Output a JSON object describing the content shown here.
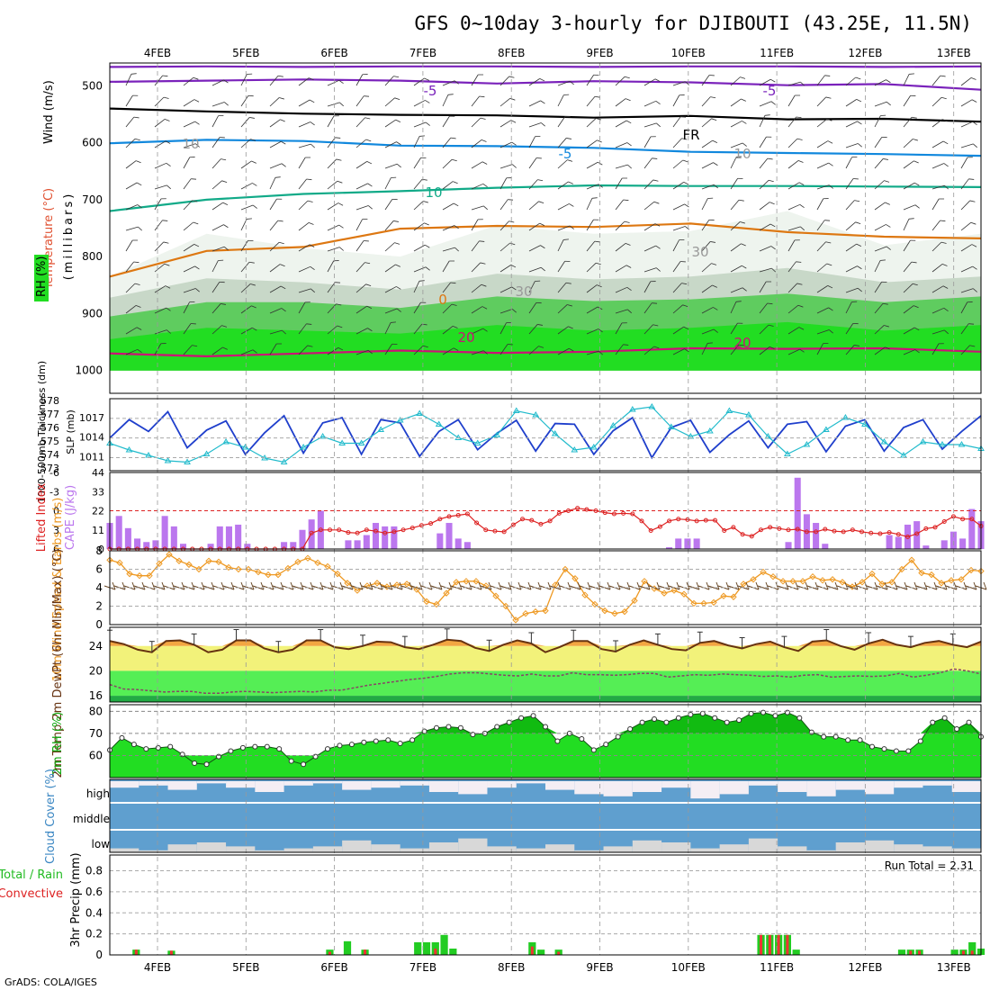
{
  "title": "GFS 0~10day 3-hourly for DJIBOUTI (43.25E, 11.5N)",
  "footer": "GrADS: COLA/IGES",
  "run_total": "Run Total = 2.31",
  "dates": [
    "4FEB",
    "5FEB",
    "6FEB",
    "7FEB",
    "8FEB",
    "9FEB",
    "10FEB",
    "11FEB",
    "12FEB",
    "13FEB"
  ],
  "colors": {
    "rh_green": "#22dd22",
    "cape": "#bb77ee",
    "li": "#dd2222",
    "slp": "#1f3fcc",
    "thick": "#22bbcc",
    "wind10": "#ee9922",
    "barb": "#664422",
    "temp_fill": "#f3a642",
    "temp_line": "#663311",
    "yellow": "#f2f27a",
    "green_band": "#55ee55",
    "cloud": "#5f9fcf",
    "precip_total": "#22cc22",
    "precip_conv": "#ee3333"
  },
  "chart_data": [
    {
      "type": "contour",
      "panel": "upper-air",
      "ylabel_wind": "Wind (m/s)",
      "ylabel_temp": "Temperature (°C)",
      "ylabel_units": "(millibars)",
      "legend_rh": "RH (%)",
      "y_ticks": [
        "500",
        "600",
        "700",
        "800",
        "900",
        "1000"
      ],
      "ylim": [
        460,
        1040
      ],
      "contour_labels": [
        {
          "text": "-5",
          "color": "#7a22bb"
        },
        {
          "text": "-5",
          "color": "#7a22bb"
        },
        {
          "text": "FR",
          "color": "#000000"
        },
        {
          "text": "-5",
          "color": "#1188dd"
        },
        {
          "text": "10",
          "color": "#11aa88"
        },
        {
          "text": "0",
          "color": "#dd7711"
        },
        {
          "text": "20",
          "color": "#cc1177"
        },
        {
          "text": "20",
          "color": "#cc1177"
        },
        {
          "text": "10",
          "color": "#999999"
        },
        {
          "text": "10",
          "color": "#999999"
        },
        {
          "text": "30",
          "color": "#999999"
        },
        {
          "text": "30",
          "color": "#999999"
        }
      ],
      "isotherms_hPa": [
        {
          "name": "-10",
          "color": "#7a22bb",
          "values": [
            467,
            466,
            467,
            466,
            466,
            467,
            466,
            466,
            467,
            466
          ]
        },
        {
          "name": "-5",
          "color": "#7a22bb",
          "values": [
            493,
            491,
            489,
            491,
            496,
            492,
            494,
            499,
            497,
            507
          ]
        },
        {
          "name": "FR",
          "color": "#000000",
          "values": [
            540,
            545,
            549,
            551,
            552,
            556,
            553,
            559,
            558,
            563
          ]
        },
        {
          "name": "-5(blue)",
          "color": "#1188dd",
          "values": [
            601,
            595,
            597,
            605,
            606,
            609,
            616,
            618,
            620,
            623
          ]
        },
        {
          "name": "10",
          "color": "#11aa88",
          "values": [
            720,
            700,
            690,
            685,
            679,
            675,
            676,
            676,
            677,
            678
          ]
        },
        {
          "name": "0",
          "color": "#dd7711",
          "values": [
            835,
            790,
            783,
            751,
            746,
            748,
            742,
            757,
            765,
            768
          ]
        },
        {
          "name": "20",
          "color": "#cc1177",
          "values": [
            970,
            975,
            970,
            965,
            969,
            967,
            961,
            962,
            961,
            967
          ]
        }
      ]
    },
    {
      "type": "line",
      "panel": "slp-thickness",
      "ylabel_left": "1000-500mb Thickness (dm)",
      "ylabel_right": "SLP (mb)",
      "left_ticks": [
        "578",
        "577",
        "576",
        "575",
        "574",
        "573"
      ],
      "right_ticks": [
        "1017",
        "1014",
        "1011"
      ],
      "series": [
        {
          "name": "SLP",
          "values": [
            1014.0,
            1016.8,
            1015.0,
            1018.0,
            1012.5,
            1015.2,
            1016.6,
            1011.5,
            1014.8,
            1017.4,
            1011.7,
            1016.3,
            1017.1,
            1011.5,
            1016.8,
            1016.3,
            1011.2,
            1015.0,
            1016.8,
            1012.2,
            1014.7,
            1016.7,
            1012.0,
            1016.2,
            1016.1,
            1011.5,
            1015.1,
            1017.1,
            1011.0,
            1015.6,
            1016.7,
            1011.8,
            1014.5,
            1016.6,
            1012.5,
            1016.1,
            1016.5,
            1011.9,
            1015.8,
            1016.8,
            1012.0,
            1015.6,
            1016.8,
            1012.3,
            1015.0,
            1017.4
          ]
        },
        {
          "name": "Thickness",
          "values": [
            574.9,
            574.4,
            574.0,
            573.6,
            573.5,
            574.1,
            575.0,
            574.6,
            573.8,
            573.5,
            574.6,
            575.4,
            574.9,
            574.9,
            575.9,
            576.6,
            577.1,
            576.3,
            575.3,
            574.9,
            575.5,
            577.3,
            577.0,
            575.6,
            574.4,
            574.6,
            576.2,
            577.4,
            577.6,
            576.1,
            575.4,
            575.8,
            577.3,
            577.0,
            575.4,
            574.1,
            574.8,
            575.9,
            576.8,
            576.3,
            575.0,
            574.0,
            575.0,
            574.8,
            574.8,
            574.5
          ]
        }
      ]
    },
    {
      "type": "bar",
      "panel": "cape-li",
      "ylabel_li": "Lifted Index",
      "ylabel_cape": "CAPE (J/kg)",
      "li_ticks": [
        "-6",
        "-3",
        "0",
        "3",
        "6"
      ],
      "cape_ticks": [
        "44",
        "33",
        "22",
        "11",
        "0"
      ],
      "series": [
        {
          "name": "CAPE",
          "values": [
            15,
            19,
            12,
            6,
            4,
            5,
            19,
            13,
            3,
            0,
            0,
            3,
            13,
            13,
            14,
            3,
            0,
            0,
            0,
            4,
            4,
            11,
            17,
            22,
            0,
            0,
            5,
            5,
            8,
            15,
            13,
            13,
            0,
            0,
            0,
            0,
            9,
            15,
            6,
            4,
            0,
            0,
            0,
            0,
            0,
            0,
            0,
            0,
            0,
            0,
            0,
            0,
            0,
            0,
            0,
            0,
            0,
            0,
            0,
            0,
            0,
            1,
            6,
            6,
            6,
            0,
            0,
            0,
            0,
            0,
            0,
            0,
            0,
            0,
            4,
            41,
            20,
            15,
            3,
            0,
            0,
            0,
            0,
            0,
            0,
            8,
            7,
            14,
            16,
            2,
            0,
            5,
            10,
            6,
            23,
            16
          ]
        },
        {
          "name": "Lifted Index",
          "values": [
            6,
            6,
            6,
            6,
            6,
            6,
            6,
            6,
            6,
            6,
            6,
            6,
            6,
            6,
            6,
            6,
            6,
            6,
            6,
            6,
            6,
            6,
            3.5,
            3,
            3,
            3,
            3.4,
            3.5,
            3,
            3.2,
            3.5,
            3.3,
            3.0,
            2.7,
            2.3,
            2.0,
            1.3,
            0.9,
            0.7,
            0.5,
            1.9,
            3.0,
            3.2,
            3.3,
            2.2,
            1.3,
            1.5,
            2.1,
            1.6,
            0.4,
            0.0,
            -0.4,
            -0.2,
            0.0,
            0.3,
            0.5,
            0.4,
            0.5,
            1.6,
            3.1,
            2.5,
            1.6,
            1.3,
            1.4,
            1.6,
            1.5,
            1.5,
            3.1,
            2.6,
            3.7,
            4.0,
            3.0,
            2.6,
            2.8,
            3.0,
            2.9,
            3.3,
            3.3,
            2.9,
            3.2,
            3.3,
            3.0,
            3.3,
            3.5,
            3.6,
            3.4,
            3.7,
            4.1,
            3.6,
            2.8,
            2.6,
            1.7,
            0.9,
            1.3,
            1.3,
            2.4
          ]
        }
      ]
    },
    {
      "type": "line",
      "panel": "wind10m",
      "ylabel": "10m Wind Speed & Barbs (m/s)",
      "ticks": [
        "8",
        "6",
        "4",
        "2",
        "0"
      ],
      "series": [
        {
          "name": "10m Wind Speed",
          "values": [
            7.0,
            6.7,
            5.5,
            5.3,
            5.3,
            6.6,
            7.6,
            6.9,
            6.5,
            6.0,
            6.9,
            6.8,
            6.2,
            6.0,
            6.0,
            5.7,
            5.4,
            5.4,
            6.1,
            6.8,
            7.2,
            6.7,
            6.3,
            5.5,
            4.5,
            3.7,
            4.2,
            4.5,
            4.1,
            4.3,
            4.4,
            3.8,
            2.5,
            2.2,
            3.4,
            4.6,
            4.7,
            4.7,
            4.2,
            3.1,
            2.0,
            0.5,
            1.2,
            1.4,
            1.5,
            4.3,
            6.0,
            5.0,
            3.2,
            2.2,
            1.5,
            1.2,
            1.4,
            2.6,
            4.7,
            3.9,
            3.4,
            3.7,
            3.3,
            2.3,
            2.3,
            2.4,
            3.1,
            3.0,
            4.4,
            4.9,
            5.7,
            5.2,
            4.7,
            4.7,
            4.7,
            5.2,
            4.8,
            4.9,
            4.6,
            4.1,
            4.6,
            5.5,
            4.4,
            4.6,
            6.0,
            7.0,
            5.6,
            5.4,
            4.5,
            4.8,
            4.9,
            5.9,
            5.8
          ]
        }
      ]
    },
    {
      "type": "line",
      "panel": "temp2m",
      "ylabel": "2m Temp 2m DewPt (6hr Min/Max) (°C)",
      "ticks": [
        "24",
        "20",
        "16"
      ],
      "series": [
        {
          "name": "2m Temp",
          "values": [
            24.8,
            24.3,
            23.4,
            23.0,
            24.8,
            24.9,
            24.2,
            23.0,
            23.4,
            24.9,
            24.9,
            23.6,
            23.0,
            23.4,
            24.9,
            24.9,
            23.8,
            23.5,
            24.0,
            24.7,
            24.6,
            23.8,
            23.5,
            24.2,
            25.0,
            24.8,
            23.7,
            23.2,
            24.2,
            24.9,
            24.4,
            23.0,
            23.8,
            24.8,
            24.8,
            23.5,
            23.1,
            24.2,
            24.9,
            24.2,
            23.5,
            23.3,
            24.5,
            24.8,
            24.1,
            23.6,
            24.3,
            24.7,
            23.8,
            23.2,
            24.7,
            24.9,
            24.0,
            23.4,
            24.4,
            25.0,
            24.2,
            23.8,
            24.5,
            24.8,
            24.2,
            23.8,
            24.7
          ]
        },
        {
          "name": "2m DewPt",
          "values": [
            17.8,
            17.1,
            17.0,
            16.8,
            16.6,
            16.7,
            16.7,
            16.4,
            16.4,
            16.6,
            16.7,
            16.6,
            16.5,
            16.6,
            16.7,
            16.6,
            16.9,
            16.9,
            17.3,
            17.7,
            18.0,
            18.3,
            18.6,
            18.8,
            19.1,
            19.5,
            19.7,
            19.7,
            19.5,
            19.3,
            19.2,
            19.5,
            19.2,
            19.2,
            19.7,
            19.4,
            19.4,
            19.3,
            19.4,
            19.6,
            19.6,
            19.0,
            19.2,
            19.4,
            19.3,
            19.5,
            19.4,
            19.3,
            19.1,
            19.2,
            19.0,
            19.3,
            19.4,
            19.0,
            19.1,
            19.2,
            19.1,
            19.2,
            19.6,
            19.0,
            19.3,
            19.7,
            20.3,
            20.0,
            19.5
          ]
        }
      ]
    },
    {
      "type": "area",
      "panel": "rh2m",
      "ylabel": "2m RH (%)",
      "ticks": [
        "80",
        "70",
        "60"
      ],
      "series": [
        {
          "name": "2m RH",
          "values": [
            62.5,
            68,
            65,
            63,
            63.5,
            64,
            60.5,
            56.5,
            56,
            59.5,
            62,
            63.5,
            64,
            64,
            63,
            57.5,
            56,
            59.5,
            63,
            64.5,
            65,
            66,
            66.5,
            67,
            65.5,
            67,
            71,
            72.5,
            73,
            72.5,
            69.5,
            70,
            73,
            75,
            77,
            78,
            73,
            66.5,
            70,
            67.5,
            62.5,
            65,
            68.5,
            72,
            75,
            76.5,
            75,
            77,
            78.5,
            79,
            77,
            75,
            76,
            79,
            79.5,
            78,
            79.5,
            77,
            70.5,
            68.5,
            68.5,
            67,
            67,
            64,
            63,
            62,
            62,
            66.5,
            75,
            77,
            72,
            75,
            68.5
          ]
        }
      ]
    },
    {
      "type": "area",
      "panel": "cloud-cover",
      "ylabel": "Cloud Cover (%)",
      "levels": [
        "high",
        "middle",
        "low"
      ]
    },
    {
      "type": "bar",
      "panel": "precip",
      "ylabel_total": "Total / Rain",
      "ylabel_conv": "Convective",
      "ylabel": "3hr Precip (mm)",
      "ticks": [
        "0.8",
        "0.6",
        "0.4",
        "0.2",
        "0"
      ],
      "ylim": [
        0,
        0.95
      ],
      "series": [
        {
          "name": "Total",
          "values": [
            0,
            0,
            0,
            0.05,
            0,
            0,
            0,
            0.04,
            0,
            0,
            0,
            0,
            0,
            0,
            0,
            0,
            0,
            0,
            0,
            0,
            0,
            0,
            0,
            0,
            0,
            0.05,
            0,
            0.13,
            0,
            0.05,
            0,
            0,
            0,
            0,
            0,
            0.12,
            0.12,
            0.12,
            0.19,
            0.06,
            0,
            0,
            0,
            0,
            0,
            0,
            0,
            0,
            0.12,
            0.05,
            0,
            0.05,
            0,
            0,
            0,
            0,
            0,
            0,
            0,
            0,
            0,
            0,
            0,
            0,
            0,
            0,
            0,
            0,
            0,
            0,
            0,
            0,
            0,
            0,
            0.19,
            0.19,
            0.19,
            0.19,
            0.05,
            0,
            0,
            0,
            0,
            0,
            0,
            0,
            0,
            0,
            0,
            0,
            0.05,
            0.05,
            0.05,
            0,
            0,
            0,
            0.05,
            0.05,
            0.12,
            0.06
          ]
        },
        {
          "name": "Convective",
          "values": [
            0,
            0,
            0,
            0.05,
            0,
            0,
            0,
            0.04,
            0,
            0,
            0,
            0,
            0,
            0,
            0,
            0,
            0,
            0,
            0,
            0,
            0,
            0,
            0,
            0,
            0,
            0.03,
            0,
            0,
            0,
            0.05,
            0,
            0,
            0,
            0,
            0,
            0,
            0,
            0.06,
            0,
            0,
            0,
            0,
            0,
            0,
            0,
            0,
            0,
            0,
            0.08,
            0,
            0,
            0.03,
            0,
            0,
            0,
            0,
            0,
            0,
            0,
            0,
            0,
            0,
            0,
            0,
            0,
            0,
            0,
            0,
            0,
            0,
            0,
            0,
            0,
            0,
            0.19,
            0.19,
            0.19,
            0.19,
            0,
            0,
            0,
            0,
            0,
            0,
            0,
            0,
            0,
            0,
            0,
            0,
            0,
            0.04,
            0.04,
            0,
            0,
            0,
            0,
            0.04,
            0.04,
            0
          ]
        }
      ]
    }
  ]
}
